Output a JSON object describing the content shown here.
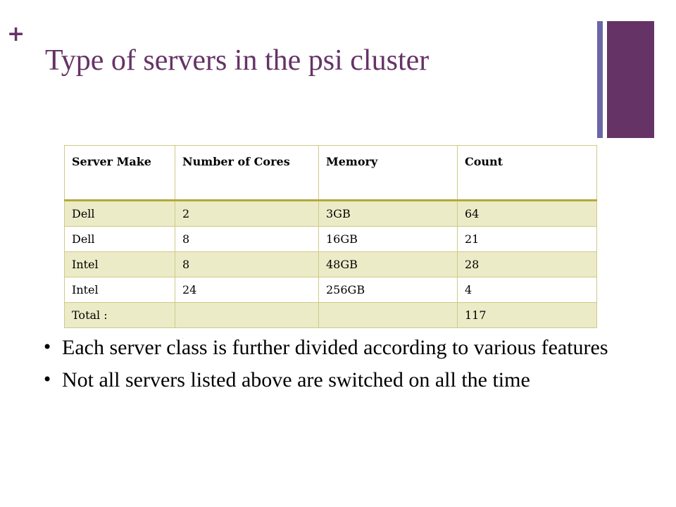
{
  "colors": {
    "accent": "#663366",
    "bar_thin": "#6b66a6",
    "table_border": "#b4a93a",
    "row_band": "#ecebc8"
  },
  "slide": {
    "plus": "+",
    "title": "Type of servers in the psi cluster"
  },
  "table": {
    "headers": [
      "Server Make",
      "Number of Cores",
      "Memory",
      "Count"
    ],
    "rows": [
      [
        "Dell",
        "2",
        "3GB",
        "64"
      ],
      [
        "Dell",
        "8",
        "16GB",
        "21"
      ],
      [
        "Intel",
        "8",
        "48GB",
        "28"
      ],
      [
        "Intel",
        "24",
        "256GB",
        "4"
      ],
      [
        "Total :",
        "",
        "",
        "117"
      ]
    ]
  },
  "bullets": [
    "Each server class is further divided according to various features",
    "Not all servers listed above are switched on all the time"
  ],
  "bullet_glyph": "•"
}
